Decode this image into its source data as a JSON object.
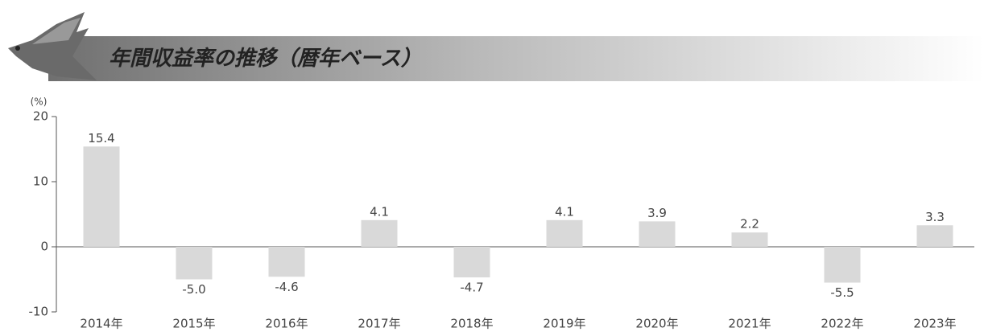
{
  "chart_data": {
    "type": "bar",
    "title": "年間収益率の推移（暦年ベース）",
    "y_label": "(%)",
    "categories": [
      "2014年",
      "2015年",
      "2016年",
      "2017年",
      "2018年",
      "2019年",
      "2020年",
      "2021年",
      "2022年",
      "2023年"
    ],
    "values": [
      15.4,
      -5.0,
      -4.6,
      4.1,
      -4.7,
      4.1,
      3.9,
      2.2,
      -5.5,
      3.3
    ],
    "value_labels": [
      "15.4",
      "-5.0",
      "-4.6",
      "4.1",
      "-4.7",
      "4.1",
      "3.9",
      "2.2",
      "-5.5",
      "3.3"
    ],
    "color": "#d9d9d9",
    "ylim": [
      -10,
      20
    ],
    "yticks": [
      -10,
      0,
      10,
      20
    ]
  }
}
